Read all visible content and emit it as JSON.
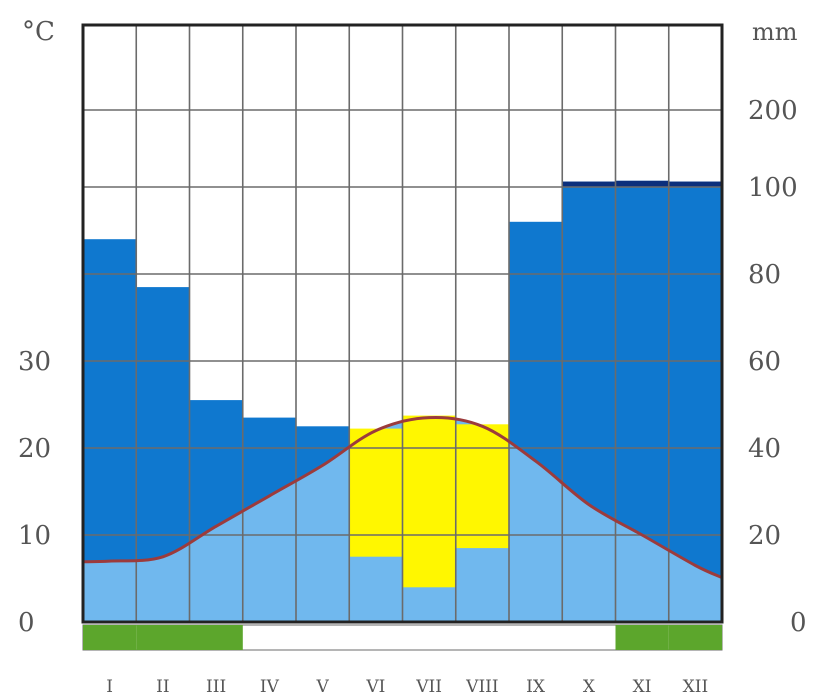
{
  "chart_data": {
    "type": "climate-diagram",
    "left_axis_label": "°C",
    "right_axis_label": "mm",
    "left_ticks": [
      "0",
      "10",
      "20",
      "30"
    ],
    "right_ticks": [
      "0",
      "20",
      "40",
      "60",
      "80",
      "100",
      "200"
    ],
    "categories": [
      "I",
      "II",
      "III",
      "IV",
      "V",
      "VI",
      "VII",
      "VIII",
      "IX",
      "X",
      "XI",
      "XII"
    ],
    "series": [
      {
        "key": "precipitation",
        "unit": "mm",
        "values": [
          88,
          77,
          51,
          47,
          45,
          15,
          8,
          17,
          92,
          107,
          108,
          107
        ]
      },
      {
        "key": "temperature",
        "unit": "°C",
        "values": [
          7,
          7.5,
          11,
          14.5,
          18,
          22,
          23.5,
          22.5,
          18.5,
          13.5,
          10,
          6.5
        ]
      }
    ],
    "frost_months": [
      "I",
      "II",
      "III",
      "XI",
      "XII"
    ],
    "colors": {
      "humid": "#0f78cf",
      "arid": "#fff700",
      "temp_area": "#70b8ee",
      "temp_line": "#9c3b3c",
      "perhumid_cap": "#0b2f7c",
      "frost": "#5ca62c",
      "grid": "#6b6b6b",
      "frame": "#222222"
    }
  }
}
